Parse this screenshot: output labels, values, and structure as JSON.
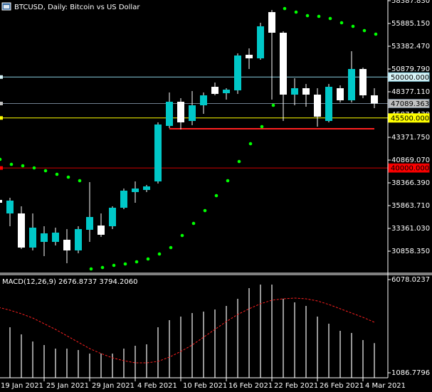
{
  "header": {
    "title": "BTCUSD, Daily:  Bitcoin vs US Dollar"
  },
  "chart_data": [
    {
      "type": "candlestick",
      "categories": [
        "19 Jan 2021",
        null,
        null,
        null,
        "25 Jan 2021",
        null,
        null,
        null,
        "29 Jan 2021",
        null,
        null,
        null,
        "4 Feb 2021",
        null,
        null,
        null,
        "10 Feb 2021",
        null,
        null,
        null,
        "16 Feb 2021",
        null,
        null,
        null,
        "22 Feb 2021",
        null,
        null,
        null,
        "26 Feb 2021",
        null,
        null,
        null,
        "4 Mar 2021",
        null
      ],
      "open": [
        36492,
        35006,
        35006,
        31252,
        31878,
        31878,
        32113,
        30940,
        33207,
        33677,
        33598,
        35632,
        37352,
        37587,
        38525,
        44625,
        47283,
        45172,
        46892,
        48926,
        48222,
        48535,
        52445,
        52054,
        57137,
        54869,
        48065,
        48769,
        48065,
        45172,
        48769,
        47440,
        50881,
        47987
      ],
      "high": [
        36726,
        36726,
        35788,
        35006,
        33598,
        33442,
        33286,
        33598,
        38447,
        35006,
        35788,
        37743,
        38525,
        38134,
        45016,
        48300,
        47674,
        48456,
        48300,
        49395,
        48769,
        52601,
        53148,
        55964,
        57371,
        55025,
        49864,
        49238,
        48769,
        49238,
        49082,
        52836,
        51037,
        48769
      ],
      "low": [
        35006,
        33598,
        31096,
        30940,
        30314,
        31487,
        29532,
        30627,
        31878,
        32425,
        33286,
        35475,
        36179,
        37352,
        38290,
        44390,
        44234,
        44703,
        45954,
        47987,
        47518,
        48144,
        50881,
        51897,
        47518,
        45172,
        46892,
        46736,
        44546,
        45016,
        47205,
        47205,
        47674,
        46580
      ],
      "close": [
        36179,
        36414,
        31252,
        33442,
        32816,
        32895,
        30940,
        33286,
        34615,
        32660,
        35632,
        37508,
        37743,
        37978,
        44781,
        47283,
        45016,
        46892,
        47987,
        48144,
        48613,
        52366,
        52054,
        55573,
        54869,
        48065,
        48769,
        48065,
        45641,
        48926,
        47440,
        50881,
        47987,
        47089.363
      ],
      "up_color": "#00c8c8",
      "down_color": "#ffffff",
      "wick_color": "#ffffff",
      "sar": {
        "values": [
          40949,
          40402,
          40245,
          40011,
          39698,
          39307,
          38994,
          38603,
          28906,
          29063,
          29297,
          29454,
          29688,
          30001,
          30549,
          31252,
          32582,
          33911,
          35319,
          36961,
          38603,
          40715,
          42670,
          44546,
          46892,
          57528,
          57137,
          56746,
          56667,
          56433,
          55964,
          55573,
          55103,
          54712
        ],
        "color": "#00ff00"
      },
      "ylim": [
        28515,
        58466
      ],
      "yticks": [
        {
          "value": 58387.83,
          "label": "58387.830"
        },
        {
          "value": 55885.15,
          "label": "55885.150"
        },
        {
          "value": 53382.47,
          "label": "53382.470"
        },
        {
          "value": 50879.79,
          "label": "50879.790"
        },
        {
          "value": 48377.11,
          "label": "48377.110"
        },
        {
          "value": 45874.43,
          "label": "45874.430"
        },
        {
          "value": 43371.75,
          "label": "43371.750"
        },
        {
          "value": 40869.07,
          "label": "40869.070"
        },
        {
          "value": 38366.39,
          "label": "38366.390"
        },
        {
          "value": 35863.71,
          "label": "35863.710"
        },
        {
          "value": 33361.03,
          "label": "33361.030"
        },
        {
          "value": 30858.35,
          "label": "30858.350"
        }
      ],
      "levels": [
        {
          "value": 50000,
          "label": "50000.000",
          "color": "#87cee0",
          "box_color": "#d8f4f8"
        },
        {
          "value": 47089.363,
          "label": "47089.363",
          "color": "#708090",
          "box_color": "#c0c0c0"
        },
        {
          "value": 45500,
          "label": "45500.000",
          "color": "#ffff00",
          "box_color": "#ffff00"
        },
        {
          "value": 40000,
          "label": "40000.000",
          "color": "#d00000",
          "box_color": "#ff0000"
        }
      ],
      "trendline": {
        "value": 44312,
        "color": "#ff2020"
      }
    },
    {
      "type": "macd",
      "title": "MACD(12,26,9) 2676.8737 3794.2060",
      "values": [
        3906,
        3525,
        3144,
        2763,
        2573,
        2382,
        2382,
        2306,
        2116,
        2116,
        2116,
        2382,
        2535,
        2611,
        3525,
        3906,
        4097,
        4287,
        4364,
        4478,
        4668,
        5049,
        5621,
        5811,
        5811,
        5049,
        4859,
        4668,
        4097,
        3716,
        3335,
        3220,
        2839,
        2676.8737
      ],
      "signal": [
        4592,
        4440,
        4249,
        4021,
        3716,
        3411,
        3068,
        2725,
        2382,
        2116,
        1887,
        1735,
        1620,
        1620,
        1697,
        1925,
        2230,
        2573,
        2992,
        3411,
        3830,
        4211,
        4516,
        4783,
        4973,
        5049,
        5087,
        5049,
        4935,
        4745,
        4516,
        4287,
        4059,
        3794.206
      ],
      "color": "#c8c8c8",
      "signal_color": "#ff2020",
      "ylim": [
        820,
        6345
      ],
      "yticks": [
        6078.0237,
        1086.7796
      ]
    }
  ]
}
